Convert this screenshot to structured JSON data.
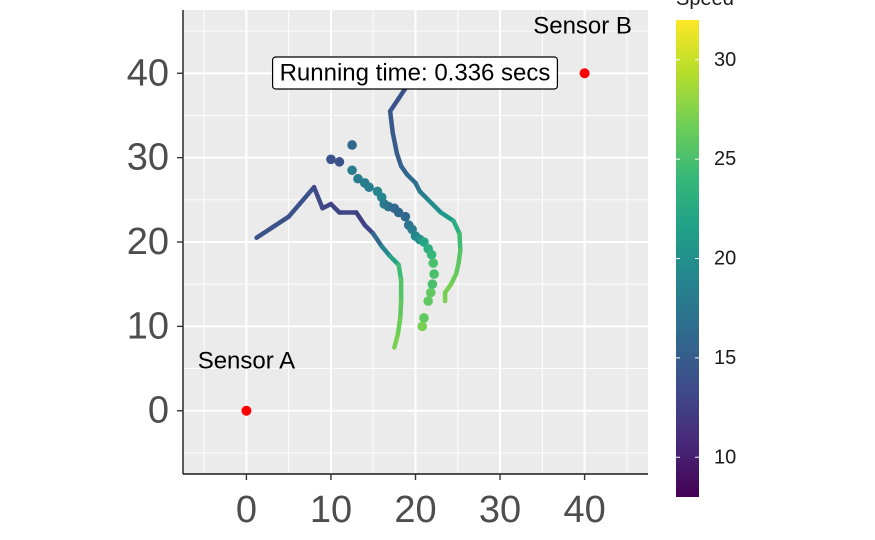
{
  "chart_data": {
    "type": "scatter",
    "title": "",
    "xlabel": "",
    "ylabel": "",
    "xlim": [
      -7.5,
      47.5
    ],
    "ylim": [
      -7.5,
      47.5
    ],
    "x_ticks": [
      0,
      10,
      20,
      30,
      40
    ],
    "y_ticks": [
      0,
      10,
      20,
      30,
      40
    ],
    "grid": true,
    "panel_background": "#ebebeb",
    "annotation": "Running time: 0.336 secs",
    "sensors": [
      {
        "label": "Sensor A",
        "x": 0,
        "y": 0,
        "color": "#ff0000"
      },
      {
        "label": "Sensor B",
        "x": 40,
        "y": 40,
        "color": "#ff0000"
      }
    ],
    "legend": {
      "title": "Speed",
      "placement": "right",
      "min": 8,
      "max": 32,
      "ticks": [
        10,
        15,
        20,
        25,
        30
      ],
      "colormap": [
        "#440154",
        "#482878",
        "#3e4a89",
        "#31688e",
        "#26828e",
        "#1f9e89",
        "#35b779",
        "#6ece58",
        "#b5de2b",
        "#fde725"
      ]
    },
    "series": [
      {
        "type": "path",
        "points": [
          [
            1.2,
            20.5,
            14
          ],
          [
            5,
            23,
            14
          ],
          [
            8,
            26.5,
            14
          ],
          [
            9,
            24,
            13
          ],
          [
            10,
            24.5,
            13
          ],
          [
            11,
            23.5,
            13
          ],
          [
            13,
            23.5,
            13
          ],
          [
            14,
            22,
            12
          ],
          [
            15,
            21,
            14
          ],
          [
            16,
            19.5,
            18
          ],
          [
            17,
            18.3,
            20
          ],
          [
            18,
            17.3,
            24
          ],
          [
            18.3,
            15.5,
            25
          ],
          [
            18.3,
            13,
            26
          ],
          [
            18.2,
            11,
            26
          ],
          [
            17.9,
            9,
            27
          ],
          [
            17.5,
            7.5,
            27
          ]
        ]
      },
      {
        "type": "path",
        "points": [
          [
            19,
            38.5,
            14
          ],
          [
            18,
            37,
            14
          ],
          [
            17,
            35.5,
            14
          ],
          [
            17.3,
            33,
            15
          ],
          [
            17.8,
            30.5,
            15
          ],
          [
            18.3,
            29,
            15
          ],
          [
            19,
            28,
            16
          ],
          [
            20,
            27,
            17
          ],
          [
            20.5,
            26,
            17
          ],
          [
            21.5,
            25,
            19
          ],
          [
            23,
            23.5,
            20
          ],
          [
            24.5,
            22.5,
            22
          ],
          [
            25.2,
            21,
            24
          ],
          [
            25.3,
            19,
            25
          ],
          [
            25.1,
            17.5,
            26
          ],
          [
            24.8,
            16.2,
            26
          ],
          [
            24.2,
            15,
            27
          ],
          [
            23.5,
            14,
            27
          ],
          [
            23.5,
            13,
            27
          ]
        ]
      },
      {
        "type": "points",
        "points": [
          [
            10,
            29.8,
            14
          ],
          [
            11,
            29.5,
            14
          ],
          [
            12.5,
            31.5,
            16
          ],
          [
            12.5,
            28.5,
            18
          ],
          [
            13.2,
            27.5,
            18
          ],
          [
            14,
            27,
            18
          ],
          [
            14.5,
            26.5,
            18
          ],
          [
            15.5,
            26,
            19
          ],
          [
            16,
            25.3,
            19
          ],
          [
            16.3,
            24.5,
            18
          ],
          [
            16.8,
            24.2,
            17
          ],
          [
            17.5,
            24,
            16
          ],
          [
            18,
            23.5,
            16
          ],
          [
            18.8,
            23,
            16
          ],
          [
            19.2,
            22,
            17
          ],
          [
            19.6,
            21.5,
            18
          ],
          [
            20,
            20.7,
            19
          ],
          [
            20.5,
            20.3,
            20
          ],
          [
            21,
            20,
            22
          ],
          [
            21.5,
            19.2,
            23
          ],
          [
            21.9,
            18.5,
            24
          ],
          [
            22.1,
            17.5,
            25
          ],
          [
            22.2,
            16.2,
            25
          ],
          [
            22,
            15,
            25
          ],
          [
            21.8,
            14,
            26
          ],
          [
            21.5,
            13,
            26
          ],
          [
            21,
            11,
            26
          ],
          [
            20.8,
            10,
            27
          ]
        ]
      }
    ]
  }
}
